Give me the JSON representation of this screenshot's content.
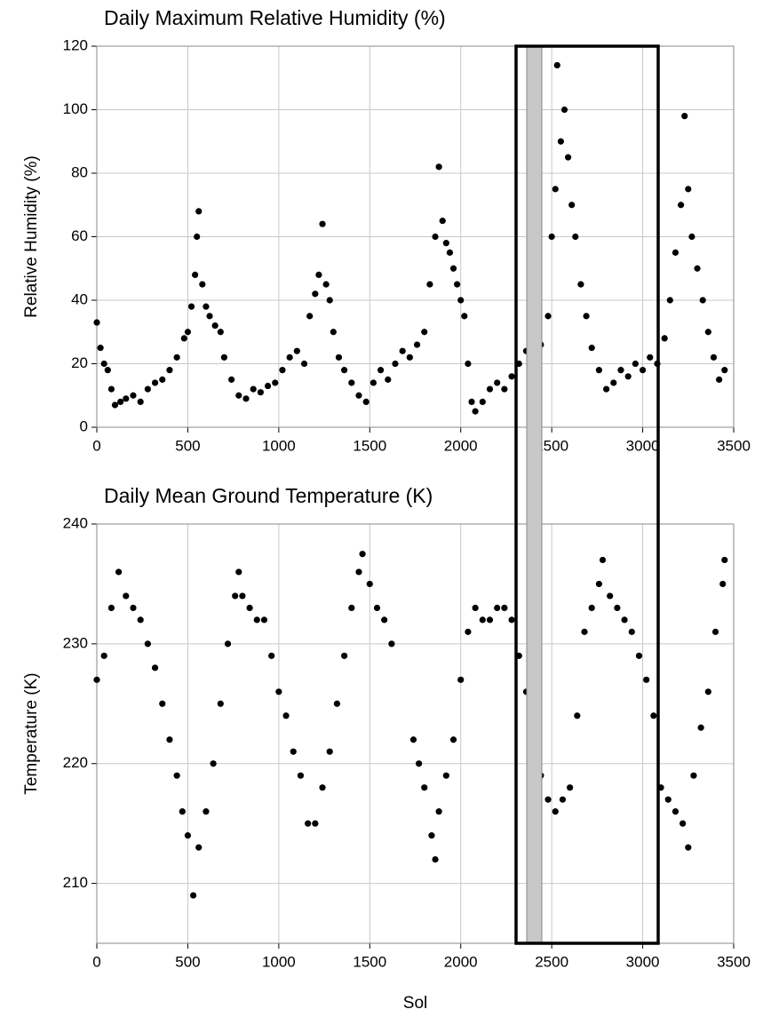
{
  "chart_data": [
    {
      "type": "scatter",
      "title": "Daily Maximum Relative Humidity (%)",
      "ylabel": "Relative Humidity (%)",
      "color": "#000000",
      "grid": true,
      "xlim": [
        0,
        3500
      ],
      "xticks": [
        0,
        500,
        1000,
        1500,
        2000,
        2500,
        3000,
        3500
      ],
      "ylim": [
        0,
        120
      ],
      "yticks": [
        0,
        20,
        40,
        60,
        80,
        100,
        120
      ],
      "x": [
        0,
        20,
        40,
        60,
        80,
        100,
        130,
        160,
        200,
        240,
        280,
        320,
        360,
        400,
        440,
        480,
        500,
        520,
        540,
        550,
        560,
        580,
        600,
        620,
        650,
        680,
        700,
        740,
        780,
        820,
        860,
        900,
        940,
        980,
        1020,
        1060,
        1100,
        1140,
        1170,
        1200,
        1220,
        1240,
        1260,
        1280,
        1300,
        1330,
        1360,
        1400,
        1440,
        1480,
        1520,
        1560,
        1600,
        1640,
        1680,
        1720,
        1760,
        1800,
        1830,
        1860,
        1880,
        1900,
        1920,
        1940,
        1960,
        1980,
        2000,
        2020,
        2040,
        2060,
        2080,
        2120,
        2160,
        2200,
        2240,
        2280,
        2320,
        2360,
        2400,
        2440,
        2480,
        2500,
        2520,
        2530,
        2550,
        2570,
        2590,
        2610,
        2630,
        2660,
        2690,
        2720,
        2760,
        2800,
        2840,
        2880,
        2920,
        2960,
        3000,
        3040,
        3080,
        3120,
        3150,
        3180,
        3210,
        3230,
        3250,
        3270,
        3300,
        3330,
        3360,
        3390,
        3420,
        3450
      ],
      "values": [
        33,
        25,
        20,
        18,
        12,
        7,
        8,
        9,
        10,
        8,
        12,
        14,
        15,
        18,
        22,
        28,
        30,
        38,
        48,
        60,
        68,
        45,
        38,
        35,
        32,
        30,
        22,
        15,
        10,
        9,
        12,
        11,
        13,
        14,
        18,
        22,
        24,
        20,
        35,
        42,
        48,
        64,
        45,
        40,
        30,
        22,
        18,
        14,
        10,
        8,
        14,
        18,
        15,
        20,
        24,
        22,
        26,
        30,
        45,
        60,
        82,
        65,
        58,
        55,
        50,
        45,
        40,
        35,
        20,
        8,
        5,
        8,
        12,
        14,
        12,
        16,
        20,
        24,
        28,
        26,
        35,
        60,
        75,
        114,
        90,
        100,
        85,
        70,
        60,
        45,
        35,
        25,
        18,
        12,
        14,
        18,
        16,
        20,
        18,
        22,
        20,
        28,
        40,
        55,
        70,
        98,
        75,
        60,
        50,
        40,
        30,
        22,
        15,
        18
      ]
    },
    {
      "type": "scatter",
      "title": "Daily Mean Ground Temperature (K)",
      "ylabel": "Temperature (K)",
      "xlabel": "Sol",
      "color": "#000000",
      "grid": true,
      "xlim": [
        0,
        3500
      ],
      "xticks": [
        0,
        500,
        1000,
        1500,
        2000,
        2500,
        3000,
        3500
      ],
      "ylim": [
        205,
        240
      ],
      "yticks": [
        210,
        220,
        230,
        240
      ],
      "x": [
        0,
        40,
        80,
        120,
        160,
        200,
        240,
        280,
        320,
        360,
        400,
        440,
        470,
        500,
        530,
        560,
        600,
        640,
        680,
        720,
        760,
        780,
        800,
        840,
        880,
        920,
        960,
        1000,
        1040,
        1080,
        1120,
        1160,
        1200,
        1240,
        1280,
        1320,
        1360,
        1400,
        1440,
        1460,
        1500,
        1540,
        1580,
        1620,
        1740,
        1770,
        1800,
        1840,
        1860,
        1880,
        1920,
        1960,
        2000,
        2040,
        2080,
        2120,
        2160,
        2200,
        2240,
        2280,
        2320,
        2360,
        2400,
        2440,
        2480,
        2520,
        2560,
        2600,
        2640,
        2680,
        2720,
        2760,
        2780,
        2820,
        2860,
        2900,
        2940,
        2980,
        3020,
        3060,
        3100,
        3140,
        3180,
        3220,
        3250,
        3280,
        3320,
        3360,
        3400,
        3440,
        3450
      ],
      "values": [
        227,
        229,
        233,
        236,
        234,
        233,
        232,
        230,
        228,
        225,
        222,
        219,
        216,
        214,
        209,
        213,
        216,
        220,
        225,
        230,
        234,
        236,
        234,
        233,
        232,
        232,
        229,
        226,
        224,
        221,
        219,
        215,
        215,
        218,
        221,
        225,
        229,
        233,
        236,
        237.5,
        235,
        233,
        232,
        230,
        222,
        220,
        218,
        214,
        212,
        216,
        219,
        222,
        227,
        231,
        233,
        232,
        232,
        233,
        233,
        232,
        229,
        226,
        223,
        219,
        217,
        216,
        217,
        218,
        224,
        231,
        233,
        235,
        237,
        234,
        233,
        232,
        231,
        229,
        227,
        224,
        218,
        217,
        216,
        215,
        213,
        219,
        223,
        226,
        231,
        235,
        237
      ]
    }
  ]
}
